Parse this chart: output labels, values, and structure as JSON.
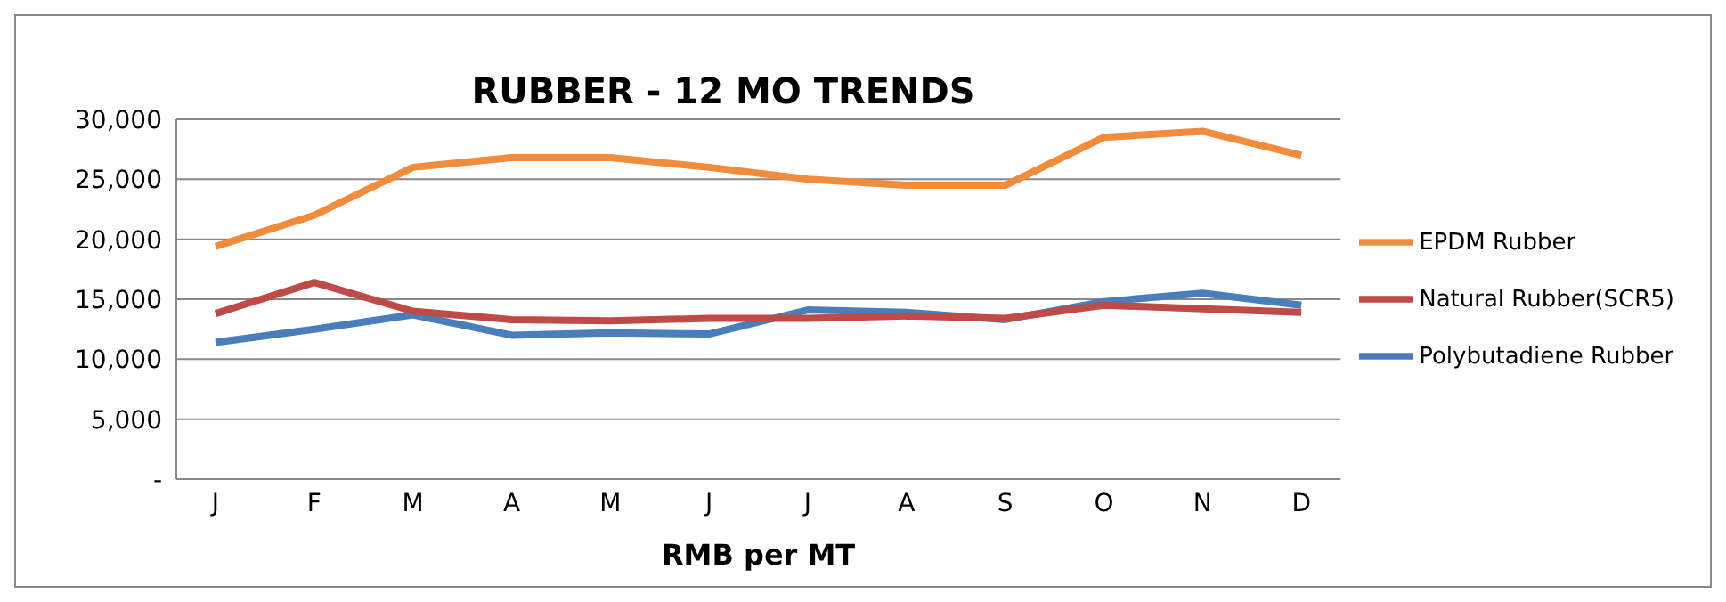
{
  "chart_data": {
    "type": "line",
    "title": "RUBBER - 12 MO TRENDS",
    "xlabel": "RMB per MT",
    "categories": [
      "J",
      "F",
      "M",
      "A",
      "M",
      "J",
      "J",
      "A",
      "S",
      "O",
      "N",
      "D"
    ],
    "series": [
      {
        "name": "Polybutadiene Rubber",
        "color": "#4a7ebb",
        "values": [
          11400,
          12500,
          13700,
          12000,
          12200,
          12100,
          14100,
          13900,
          13300,
          14800,
          15500,
          14500
        ]
      },
      {
        "name": "Natural Rubber(SCR5)",
        "color": "#be4b48",
        "values": [
          13800,
          16400,
          14000,
          13300,
          13200,
          13400,
          13400,
          13600,
          13400,
          14500,
          14200,
          13900
        ]
      },
      {
        "name": "EPDM Rubber",
        "color": "#f08c3c",
        "values": [
          19400,
          22000,
          26000,
          26800,
          26800,
          26000,
          25000,
          24500,
          24500,
          28500,
          29000,
          27000
        ]
      }
    ],
    "ylim": [
      0,
      30000
    ],
    "yticks": [
      {
        "value": 0,
        "label": "-"
      },
      {
        "value": 5000,
        "label": "5,000"
      },
      {
        "value": 10000,
        "label": "10,000"
      },
      {
        "value": 15000,
        "label": "15,000"
      },
      {
        "value": 20000,
        "label": "20,000"
      },
      {
        "value": 25000,
        "label": "25,000"
      },
      {
        "value": 30000,
        "label": "30,000"
      }
    ],
    "grid": "y",
    "legend": "right",
    "marker": "none",
    "line_style": "solid"
  }
}
